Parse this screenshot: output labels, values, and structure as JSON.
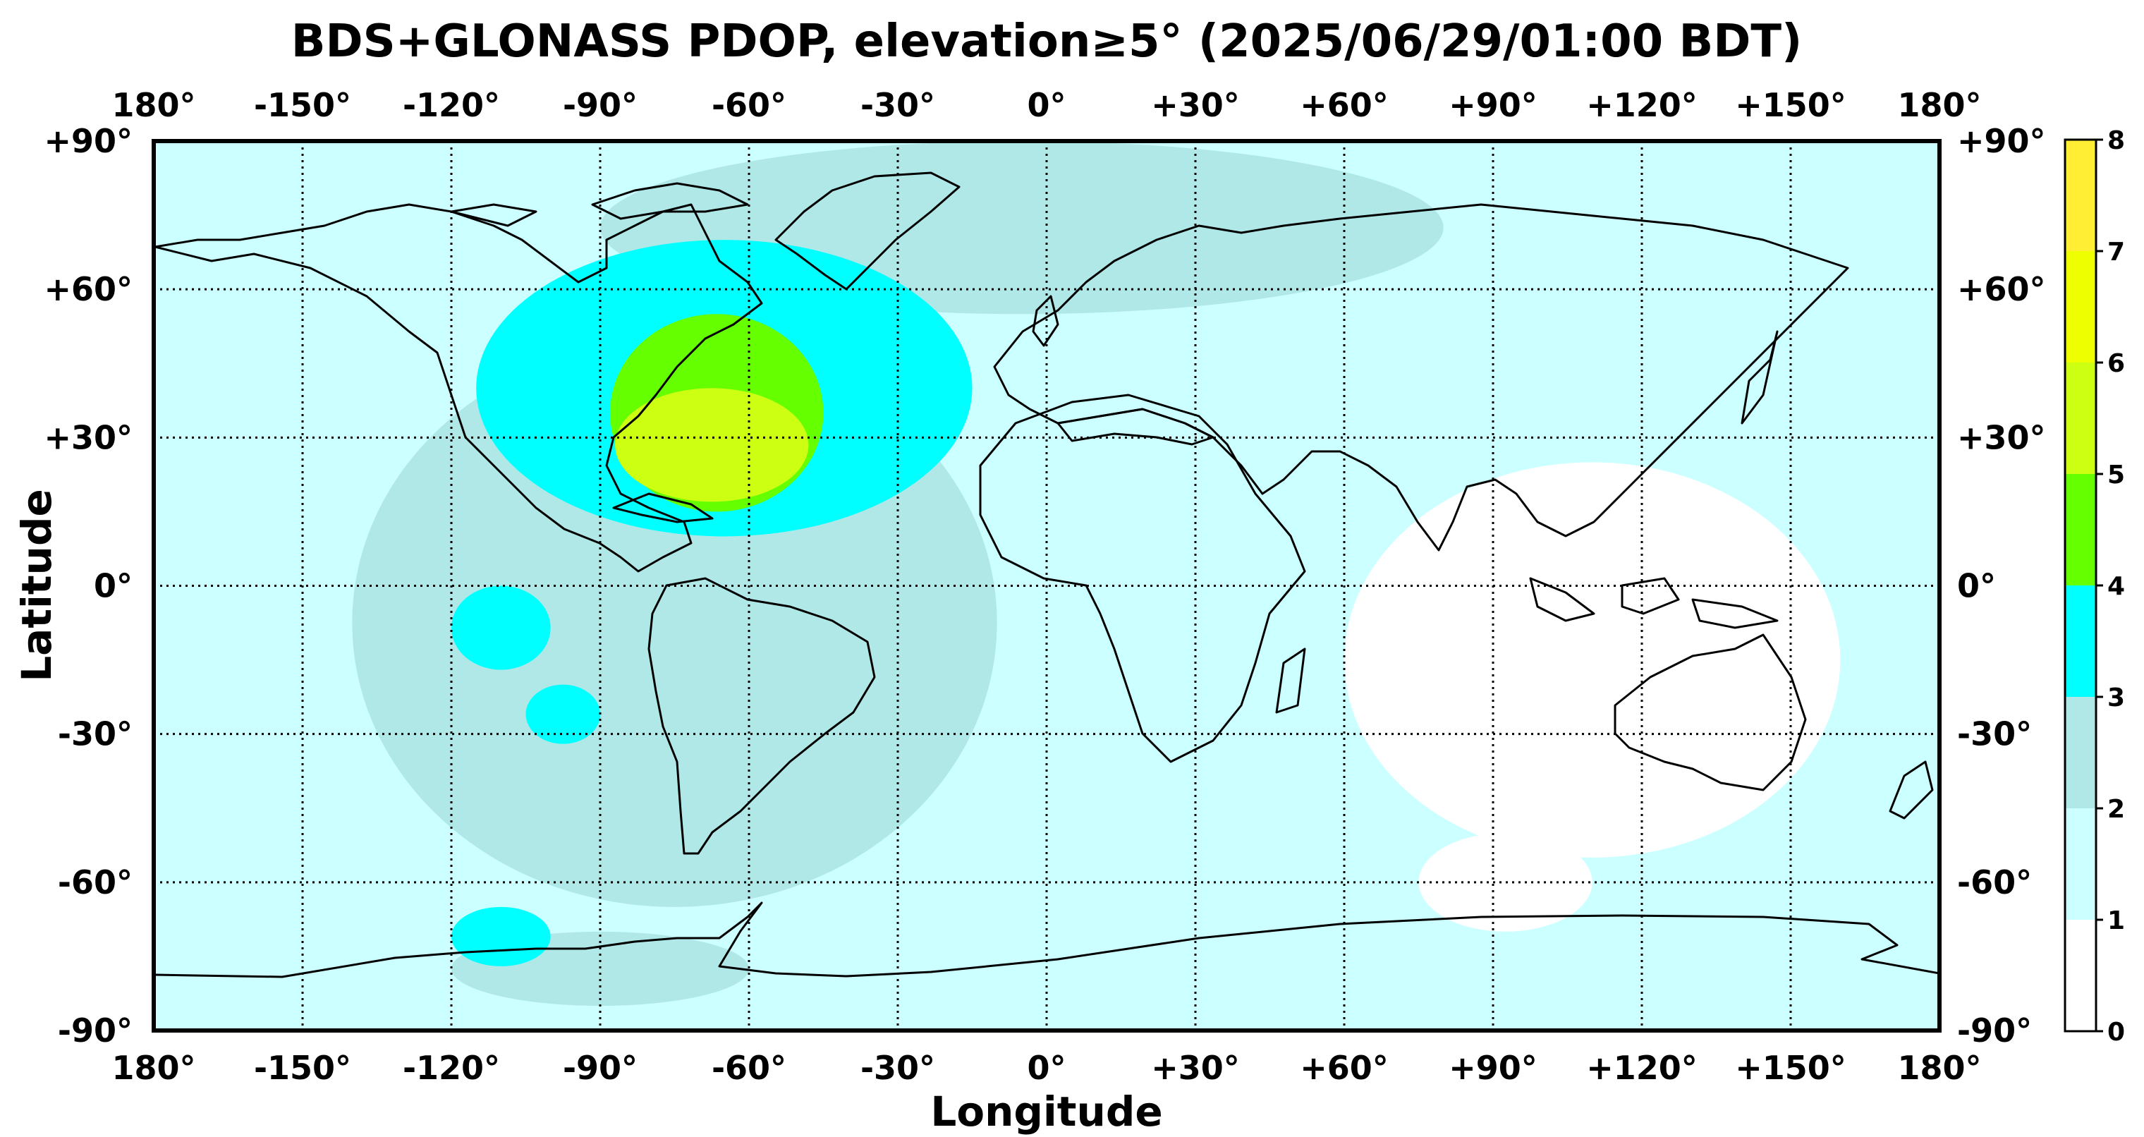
{
  "title": "BDS+GLONASS PDOP, elevation≥5° (2025/06/29/01:00 BDT)",
  "xlabel": "Longitude",
  "ylabel": "Latitude",
  "lon_ticks": [
    "180°",
    "-150°",
    "-120°",
    "-90°",
    "-60°",
    "-30°",
    "0°",
    "+30°",
    "+60°",
    "+90°",
    "+120°",
    "+150°",
    "180°"
  ],
  "lat_ticks": [
    "+90°",
    "+60°",
    "+30°",
    "0°",
    "-30°",
    "-60°",
    "-90°"
  ],
  "colorbar": {
    "ticks": [
      "0",
      "1",
      "2",
      "3",
      "4",
      "5",
      "6",
      "7",
      "8"
    ],
    "bands": [
      {
        "from": 0,
        "to": 1,
        "color": "#ffffff"
      },
      {
        "from": 1,
        "to": 2,
        "color": "#ccffff"
      },
      {
        "from": 2,
        "to": 3,
        "color": "#b0e8e8"
      },
      {
        "from": 3,
        "to": 4,
        "color": "#00ffff"
      },
      {
        "from": 4,
        "to": 5,
        "color": "#66ff00"
      },
      {
        "from": 5,
        "to": 6,
        "color": "#ccff11"
      },
      {
        "from": 6,
        "to": 7,
        "color": "#eeff00"
      },
      {
        "from": 7,
        "to": 8,
        "color": "#ffee33"
      }
    ]
  },
  "chart_data": {
    "type": "heatmap",
    "title": "BDS+GLONASS PDOP, elevation≥5° (2025/06/29/01:00 BDT)",
    "xlabel": "Longitude",
    "ylabel": "Latitude",
    "xlim": [
      -180,
      180
    ],
    "ylim": [
      -90,
      90
    ],
    "value_range": [
      0,
      8
    ],
    "grid": true,
    "background_value": 1.5,
    "regions": [
      {
        "label": "PDOP 2-3",
        "value": 2.5,
        "lon": [
          -140,
          -10
        ],
        "lat": [
          -65,
          50
        ]
      },
      {
        "label": "PDOP 2-3",
        "value": 2.5,
        "lon": [
          -90,
          80
        ],
        "lat": [
          55,
          90
        ]
      },
      {
        "label": "PDOP 2-3",
        "value": 2.5,
        "lon": [
          -120,
          -60
        ],
        "lat": [
          -85,
          -70
        ]
      },
      {
        "label": "PDOP 3-4",
        "value": 3.5,
        "lon": [
          -115,
          -15
        ],
        "lat": [
          10,
          70
        ]
      },
      {
        "label": "PDOP 3-4",
        "value": 3.5,
        "lon": [
          -105,
          -90
        ],
        "lat": [
          -32,
          -20
        ]
      },
      {
        "label": "PDOP 3-4",
        "value": 3.5,
        "lon": [
          -120,
          -100
        ],
        "lat": [
          -17,
          0
        ]
      },
      {
        "label": "PDOP 3-4",
        "value": 3.5,
        "lon": [
          -120,
          -100
        ],
        "lat": [
          -77,
          -65
        ]
      },
      {
        "label": "PDOP 4-5",
        "value": 4.5,
        "lon": [
          -88,
          -45
        ],
        "lat": [
          15,
          55
        ]
      },
      {
        "label": "PDOP 5-6",
        "value": 5.5,
        "lon": [
          -87,
          -48
        ],
        "lat": [
          17,
          40
        ]
      },
      {
        "label": "PDOP 0-1",
        "value": 0.5,
        "lon": [
          60,
          160
        ],
        "lat": [
          -55,
          25
        ]
      },
      {
        "label": "PDOP 0-1",
        "value": 0.5,
        "lon": [
          75,
          110
        ],
        "lat": [
          -70,
          -50
        ]
      }
    ]
  }
}
